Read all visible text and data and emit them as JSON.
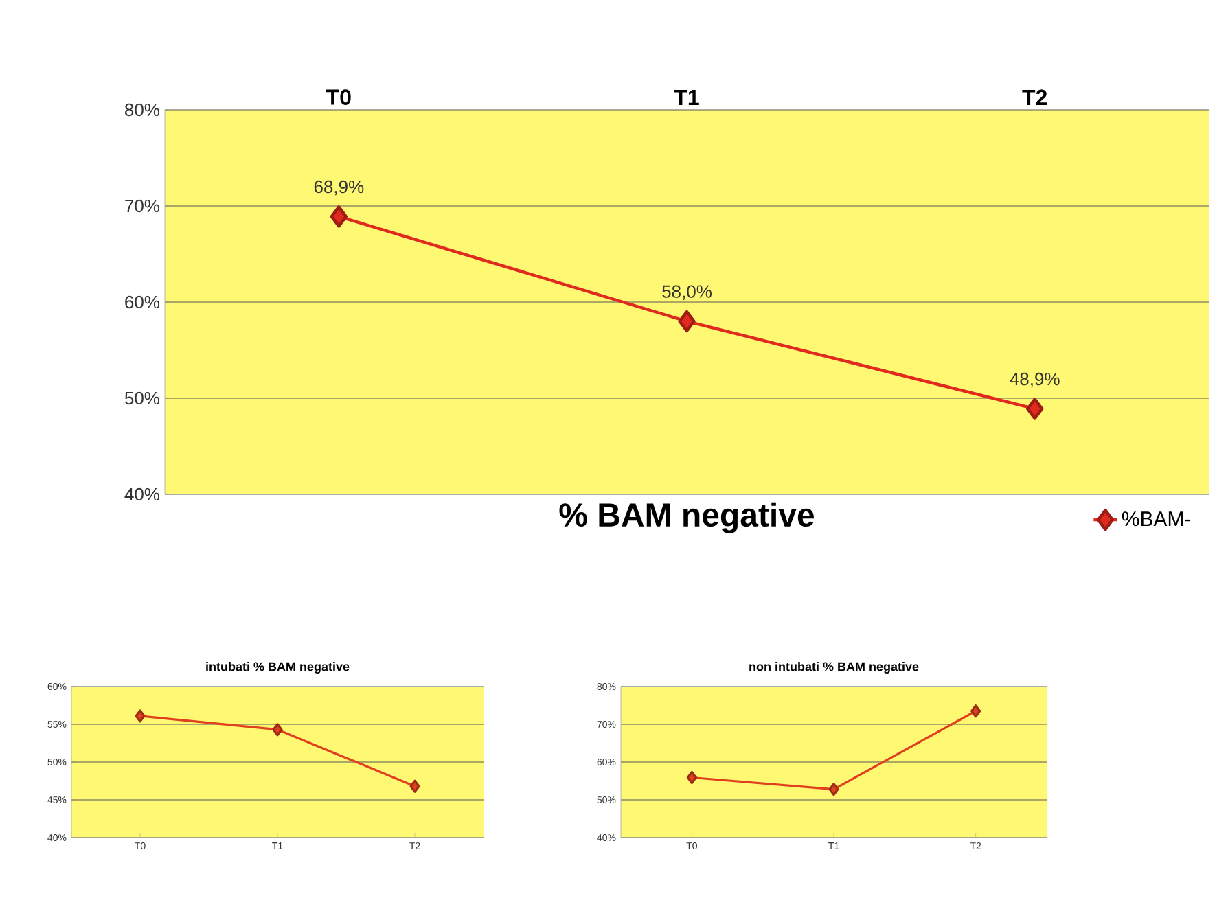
{
  "chart_data": [
    {
      "type": "line",
      "title": "% BAM negative",
      "categories": [
        "T0",
        "T1",
        "T2"
      ],
      "series": [
        {
          "name": "%BAM-",
          "color": "#e02a1e",
          "values": [
            68.9,
            58.0,
            48.9
          ],
          "value_labels": [
            "68,9%",
            "58,0%",
            "48,9%"
          ]
        }
      ],
      "ylim": [
        40,
        80
      ],
      "yticks": [
        {
          "value": 40,
          "label": "40%"
        },
        {
          "value": 50,
          "label": "50%"
        },
        {
          "value": 60,
          "label": "60%"
        },
        {
          "value": 70,
          "label": "70%"
        },
        {
          "value": 80,
          "label": "80%"
        }
      ],
      "grid": "y",
      "legend": "bottom right",
      "marker": "diamond"
    },
    {
      "type": "line",
      "title": "intubati % BAM negative",
      "categories": [
        "T0",
        "T1",
        "T2"
      ],
      "series": [
        {
          "color": "#e0401e",
          "values": [
            56.1,
            54.3,
            46.8
          ]
        }
      ],
      "ylim": [
        40,
        60
      ],
      "yticks": [
        {
          "value": 40,
          "label": "40%"
        },
        {
          "value": 45,
          "label": "45%"
        },
        {
          "value": 50,
          "label": "50%"
        },
        {
          "value": 55,
          "label": "55%"
        },
        {
          "value": 60,
          "label": "60%"
        }
      ],
      "grid": "y",
      "marker": "diamond"
    },
    {
      "type": "line",
      "title": "non intubati % BAM  negative",
      "categories": [
        "T0",
        "T1",
        "T2"
      ],
      "series": [
        {
          "color": "#e0401e",
          "values": [
            55.9,
            52.8,
            73.5
          ]
        }
      ],
      "ylim": [
        40,
        80
      ],
      "yticks": [
        {
          "value": 40,
          "label": "40%"
        },
        {
          "value": 50,
          "label": "50%"
        },
        {
          "value": 60,
          "label": "60%"
        },
        {
          "value": 70,
          "label": "70%"
        },
        {
          "value": 80,
          "label": "80%"
        }
      ],
      "grid": "y",
      "marker": "diamond"
    }
  ]
}
